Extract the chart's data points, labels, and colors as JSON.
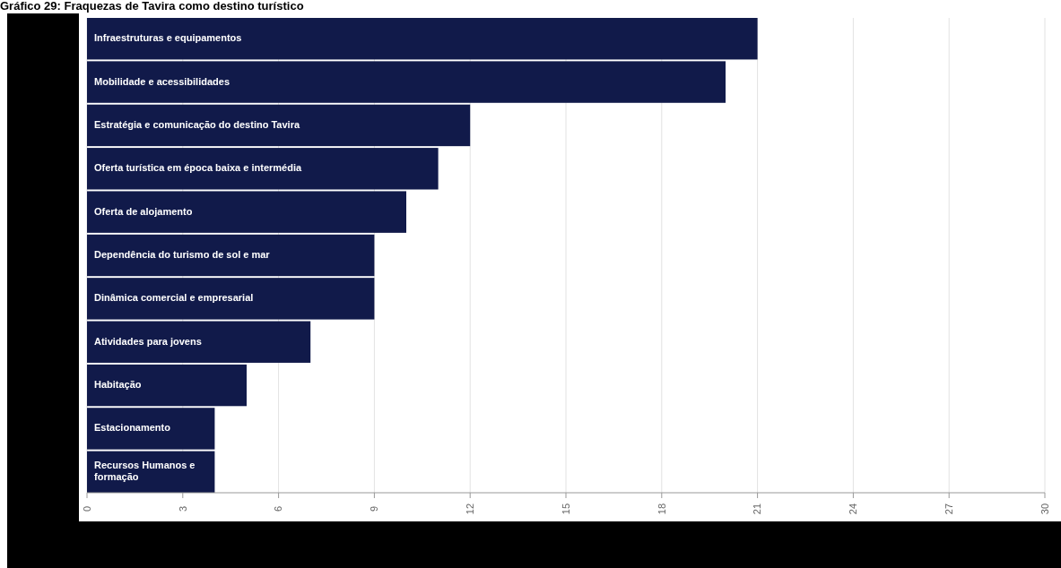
{
  "chart_data": {
    "type": "bar",
    "orientation": "horizontal",
    "title": "Gráfico 29: Fraquezas de Tavira como destino turístico",
    "categories": [
      "Infraestruturas e equipamentos",
      "Mobilidade e acessibilidades",
      "Estratégia e comunicação do destino Tavira",
      "Oferta turística em época baixa e intermédia",
      "Oferta de alojamento",
      "Dependência do turismo de sol e mar",
      "Dinâmica comercial e empresarial",
      "Atividades para jovens",
      "Habitação",
      "Estacionamento",
      "Recursos Humanos e formação"
    ],
    "values": [
      21,
      20,
      12,
      11,
      10,
      9,
      9,
      7,
      5,
      4,
      4
    ],
    "color": "#111a4a",
    "xlim": [
      0,
      30
    ],
    "xticks": [
      0,
      3,
      6,
      9,
      12,
      15,
      18,
      21,
      24,
      27,
      30
    ],
    "grid": "x"
  }
}
